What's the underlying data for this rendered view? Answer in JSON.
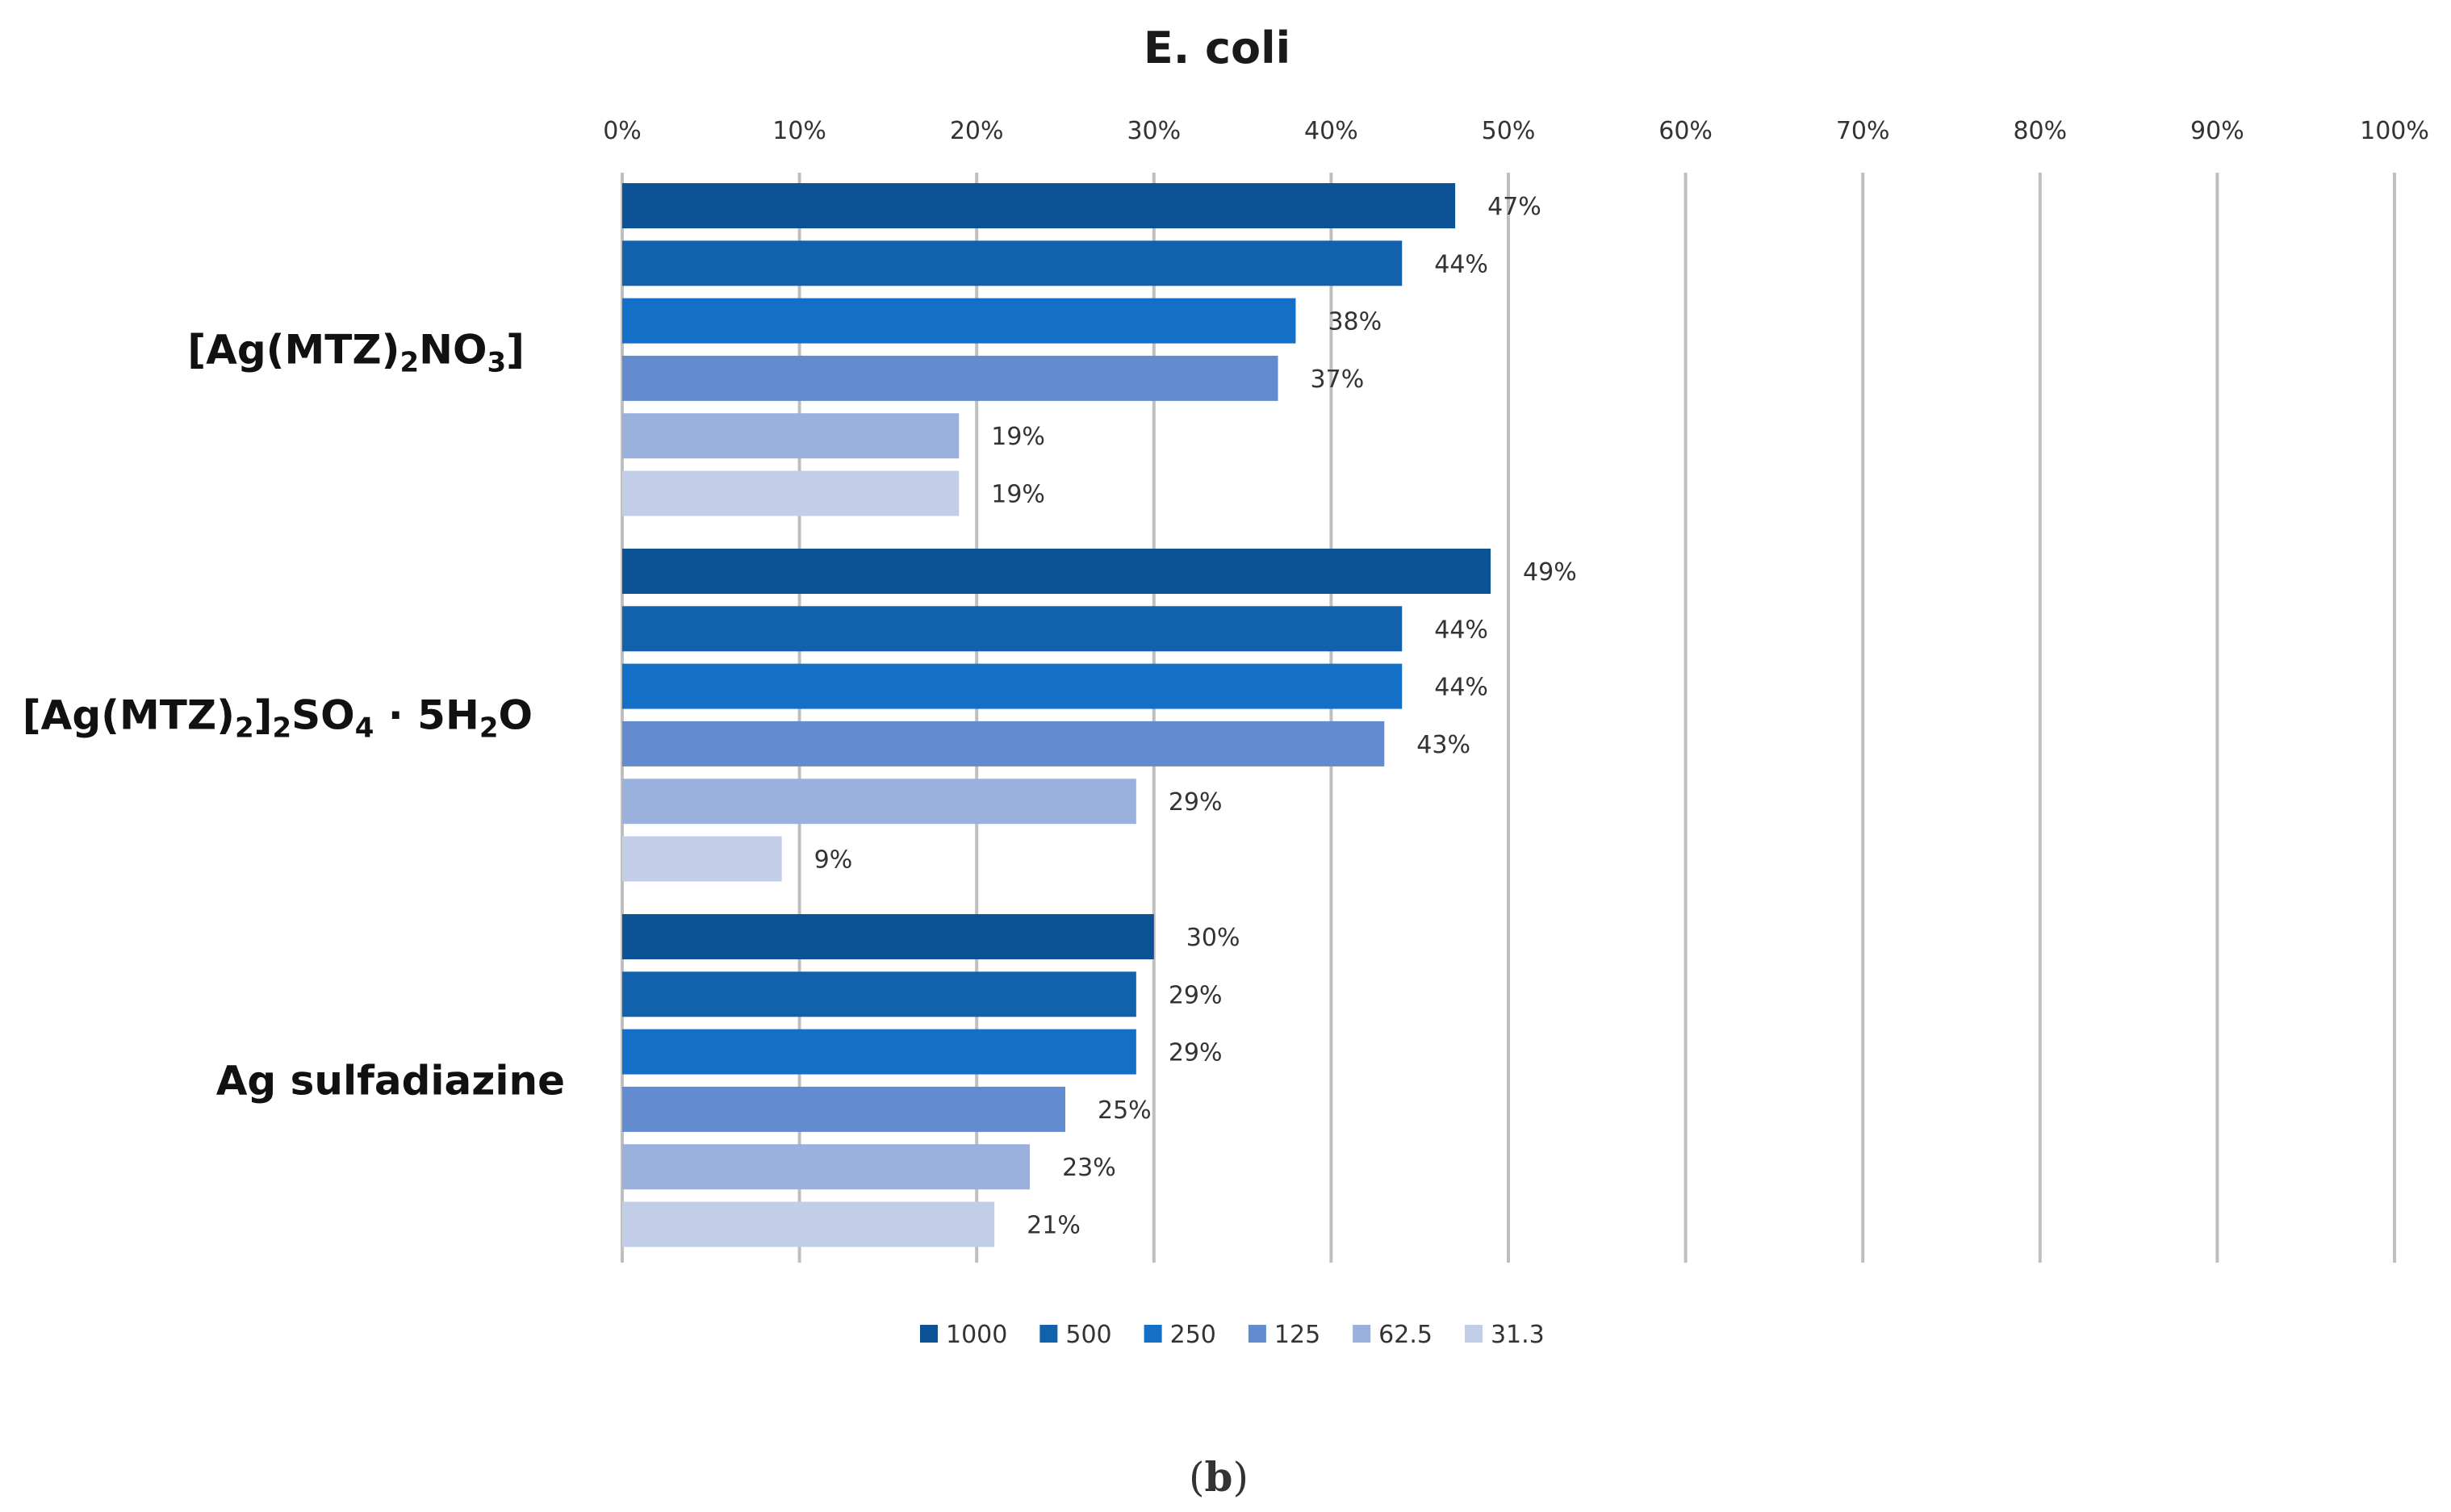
{
  "chart_data": {
    "type": "bar",
    "orientation": "horizontal",
    "title": "E. coli",
    "caption": {
      "open": "(",
      "letter": "b",
      "close": ")"
    },
    "xlim": [
      0,
      100
    ],
    "x_ticks": [
      "0%",
      "10%",
      "20%",
      "30%",
      "40%",
      "50%",
      "60%",
      "70%",
      "80%",
      "90%",
      "100%"
    ],
    "grid": true,
    "legend_position": "bottom",
    "categories": [
      {
        "parts": [
          {
            "t": "[Ag(MTZ)"
          },
          {
            "t": "2",
            "sub": true
          },
          {
            "t": "NO"
          },
          {
            "t": "3",
            "sub": true
          },
          {
            "t": "]"
          }
        ]
      },
      {
        "parts": [
          {
            "t": "[Ag(MTZ)"
          },
          {
            "t": "2",
            "sub": true
          },
          {
            "t": "]"
          },
          {
            "t": "2",
            "sub": true
          },
          {
            "t": "SO"
          },
          {
            "t": "4",
            "sub": true
          },
          {
            "t": " · 5H"
          },
          {
            "t": "2",
            "sub": true
          },
          {
            "t": "O"
          }
        ]
      },
      {
        "parts": [
          {
            "t": "Ag sulfadiazine"
          }
        ]
      }
    ],
    "series": [
      {
        "name": "1000",
        "color": "#0b5394",
        "values": [
          47,
          49,
          30
        ],
        "labels": [
          "47%",
          "49%",
          "30%"
        ]
      },
      {
        "name": "500",
        "color": "#1261ad",
        "values": [
          44,
          44,
          29
        ],
        "labels": [
          "44%",
          "44%",
          "29%"
        ]
      },
      {
        "name": "250",
        "color": "#146fc7",
        "values": [
          38,
          44,
          29
        ],
        "labels": [
          "38%",
          "44%",
          "29%"
        ]
      },
      {
        "name": "125",
        "color": "#638bd0",
        "values": [
          37,
          43,
          25
        ],
        "labels": [
          "37%",
          "43%",
          "25%"
        ]
      },
      {
        "name": "62.5",
        "color": "#9ab0dd",
        "values": [
          19,
          29,
          23
        ],
        "labels": [
          "19%",
          "29%",
          "23%"
        ]
      },
      {
        "name": "31.3",
        "color": "#c2cde8",
        "values": [
          19,
          9,
          21
        ],
        "labels": [
          "19%",
          "9%",
          "21%"
        ]
      }
    ]
  }
}
